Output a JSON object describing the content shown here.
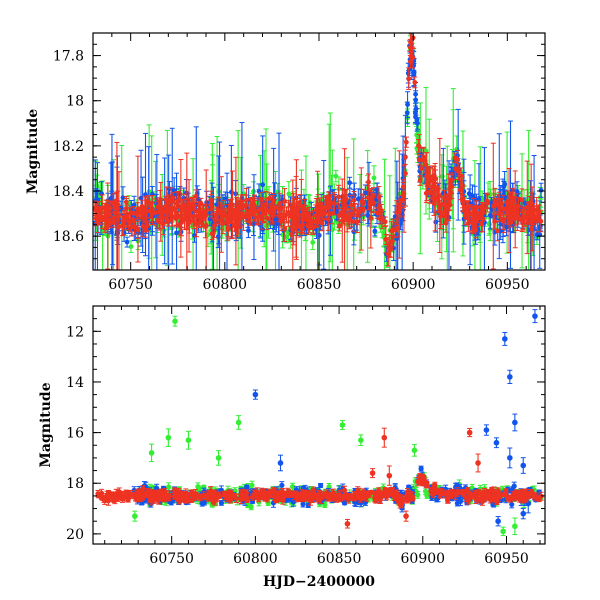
{
  "figure": {
    "xlabel": "HJD−2400000"
  },
  "chart_data": [
    {
      "type": "scatter",
      "panel": "top",
      "title": "",
      "xlabel": "",
      "ylabel": "Magnitude",
      "xlim": [
        60730,
        60970
      ],
      "ylim": [
        18.75,
        17.7
      ],
      "y_inverted": true,
      "xticks": [
        60750,
        60800,
        60850,
        60900,
        60950
      ],
      "xtick_labels": [
        "60750",
        "60800",
        "60850",
        "60900",
        "60950"
      ],
      "yticks": [
        17.8,
        18,
        18.2,
        18.4,
        18.6
      ],
      "ytick_labels": [
        "17.8",
        "18",
        "18.2",
        "18.4",
        "18.6"
      ],
      "baseline_magnitude": 18.5,
      "features": [
        {
          "type": "dip",
          "center": 60888,
          "depth_mag": 0.2
        },
        {
          "type": "peak",
          "center": 60899,
          "peak_mag": 17.85
        },
        {
          "type": "bump",
          "center": 60923,
          "peak_mag": 18.25
        }
      ],
      "series": [
        {
          "name": "green",
          "color": "#33ee33"
        },
        {
          "name": "blue",
          "color": "#1155ee"
        },
        {
          "name": "red",
          "color": "#ee3322"
        }
      ]
    },
    {
      "type": "scatter",
      "panel": "bottom",
      "title": "",
      "xlabel": "HJD−2400000",
      "ylabel": "Magnitude",
      "xlim": [
        60703,
        60973
      ],
      "ylim": [
        20.4,
        11.0
      ],
      "y_inverted": true,
      "xticks": [
        60750,
        60800,
        60850,
        60900,
        60950
      ],
      "xtick_labels": [
        "60750",
        "60800",
        "60850",
        "60900",
        "60950"
      ],
      "yticks": [
        12,
        14,
        16,
        18,
        20
      ],
      "ytick_labels": [
        "12",
        "14",
        "16",
        "18",
        "20"
      ],
      "baseline_magnitude": 18.5,
      "outliers": {
        "green": [
          [
            60752,
            11.6
          ],
          [
            60738,
            16.8
          ],
          [
            60748,
            16.2
          ],
          [
            60760,
            16.3
          ],
          [
            60790,
            15.6
          ],
          [
            60852,
            15.7
          ],
          [
            60863,
            16.3
          ],
          [
            60895,
            16.7
          ],
          [
            60778,
            17.0
          ],
          [
            60948,
            19.9
          ],
          [
            60955,
            19.7
          ],
          [
            60728,
            19.3
          ]
        ],
        "blue": [
          [
            60800,
            14.5
          ],
          [
            60949,
            12.3
          ],
          [
            60952,
            13.8
          ],
          [
            60955,
            15.6
          ],
          [
            60967,
            11.4
          ],
          [
            60938,
            15.9
          ],
          [
            60944,
            16.4
          ],
          [
            60952,
            17.0
          ],
          [
            60960,
            17.3
          ],
          [
            60963,
            18.8
          ],
          [
            60945,
            19.5
          ],
          [
            60960,
            19.2
          ],
          [
            60815,
            17.2
          ]
        ],
        "red": [
          [
            60928,
            16.0
          ],
          [
            60933,
            17.2
          ],
          [
            60877,
            16.2
          ],
          [
            60870,
            17.6
          ],
          [
            60880,
            17.7
          ],
          [
            60855,
            19.6
          ],
          [
            60890,
            19.3
          ]
        ]
      },
      "series": [
        {
          "name": "green",
          "color": "#33ee33"
        },
        {
          "name": "blue",
          "color": "#1155ee"
        },
        {
          "name": "red",
          "color": "#ee3322"
        }
      ]
    }
  ]
}
